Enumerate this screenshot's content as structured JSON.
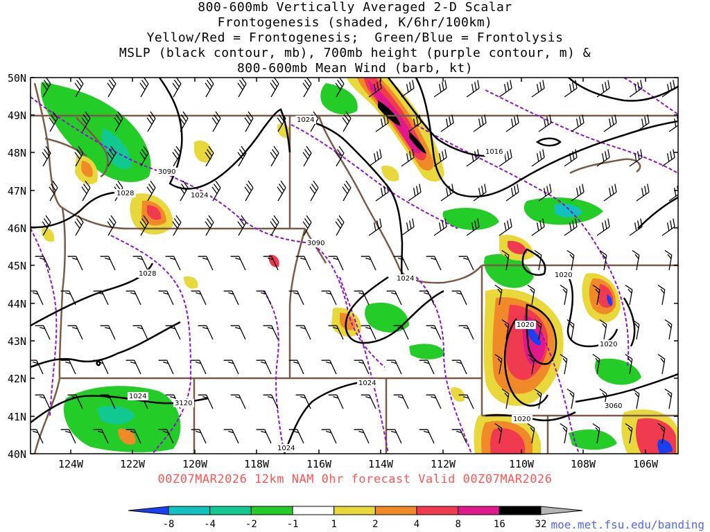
{
  "title_lines": [
    "800-600mb Vertically Averaged 2-D Scalar",
    "Frontogenesis (shaded, K/6hr/100km)",
    "Yellow/Red = Frontogenesis;  Green/Blue = Frontolysis",
    "MSLP (black contour, mb), 700mb height (purple contour, m) &",
    "800-600mb Mean Wind (barb, kt)"
  ],
  "axes": {
    "lat_labels": [
      "50N",
      "49N",
      "48N",
      "47N",
      "46N",
      "45N",
      "44N",
      "43N",
      "42N",
      "41N",
      "40N"
    ],
    "lon_labels": [
      "124W",
      "122W",
      "120W",
      "118W",
      "116W",
      "114W",
      "112W",
      "110W",
      "108W",
      "106W"
    ]
  },
  "contour_labels": {
    "mslp": [
      "1024",
      "1016",
      "1028",
      "1024",
      "1028",
      "1024",
      "1020",
      "1020",
      "1020",
      "1024",
      "1024",
      "1020",
      "1024"
    ],
    "height_700mb": [
      "3090",
      "3090",
      "3120",
      "3060"
    ]
  },
  "colorbar": {
    "labels": [
      "-8",
      "-4",
      "-2",
      "-1",
      "1",
      "2",
      "4",
      "8",
      "16",
      "32"
    ],
    "colors": [
      "#1a3ff0",
      "#12c0c0",
      "#10c890",
      "#24cc28",
      "#ffffff",
      "#e8d83c",
      "#f08a28",
      "#f03a50",
      "#e0188c",
      "#000000",
      "#b4b4b4"
    ]
  },
  "shading_colors": {
    "frontolysis_weak": "#24cc28",
    "frontolysis_mod": "#10c890",
    "frontolysis_strong": "#12c0c0",
    "frontolysis_max": "#1a3ff0",
    "frontogenesis_weak": "#e8d83c",
    "frontogenesis_mod": "#f08a28",
    "frontogenesis_strong": "#f03a50",
    "frontogenesis_vstrong": "#e0188c",
    "frontogenesis_max": "#000000"
  },
  "contour_colors": {
    "mslp": "#000000",
    "height": "#9010d0",
    "borders": "#7a5a48"
  },
  "valid_text": "00Z07MAR2026 12km NAM 0hr forecast Valid 00Z07MAR2026",
  "credit": "moe.met.fsu.edu/banding"
}
